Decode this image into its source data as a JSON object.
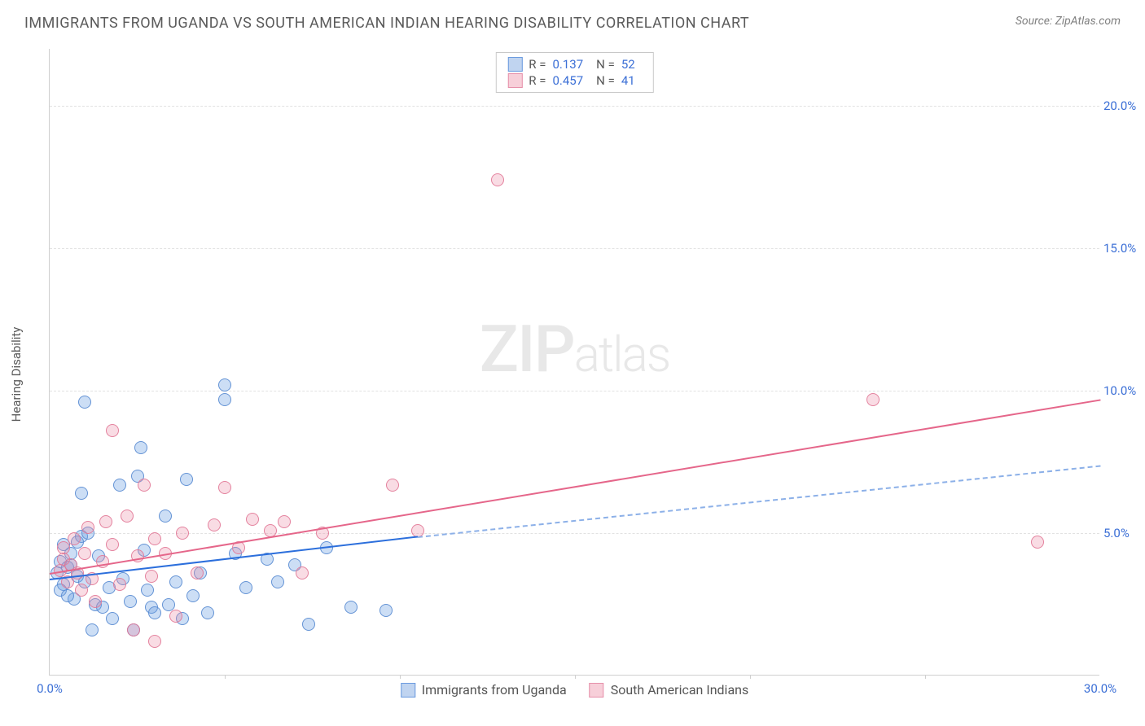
{
  "title": "IMMIGRANTS FROM UGANDA VS SOUTH AMERICAN INDIAN HEARING DISABILITY CORRELATION CHART",
  "source": "Source: ZipAtlas.com",
  "watermark_main": "ZIP",
  "watermark_sub": "atlas",
  "chart": {
    "type": "scatter",
    "ylabel": "Hearing Disability",
    "background_color": "#ffffff",
    "grid_color": "#e2e2e2",
    "axis_color": "#cfcfcf",
    "tick_color": "#3b6fd6",
    "xlim": [
      0,
      30
    ],
    "ylim": [
      0,
      22
    ],
    "xticks": [
      0,
      10,
      20,
      30
    ],
    "xtick_labels": [
      "0.0%",
      "",
      "",
      "30.0%"
    ],
    "xtick_marks": [
      5,
      10,
      15,
      20,
      25
    ],
    "yticks": [
      5,
      10,
      15,
      20
    ],
    "ytick_labels": [
      "5.0%",
      "10.0%",
      "15.0%",
      "20.0%"
    ],
    "marker_radius": 8,
    "series": [
      {
        "name": "Immigrants from Uganda",
        "key": "s1",
        "color_fill": "rgba(110,160,225,0.35)",
        "color_stroke": "#5a8cd2",
        "R": "0.137",
        "N": "52",
        "trend": {
          "x0": 0,
          "y0": 3.4,
          "x1": 10.5,
          "y1": 4.9,
          "dash_x1": 30,
          "dash_y1": 7.4
        },
        "points": [
          [
            0.2,
            3.6
          ],
          [
            0.3,
            4.0
          ],
          [
            0.4,
            3.2
          ],
          [
            0.5,
            3.8
          ],
          [
            0.3,
            3.0
          ],
          [
            0.6,
            4.3
          ],
          [
            0.4,
            4.6
          ],
          [
            0.8,
            3.5
          ],
          [
            0.7,
            2.7
          ],
          [
            0.9,
            4.9
          ],
          [
            1.0,
            3.3
          ],
          [
            0.5,
            2.8
          ],
          [
            1.1,
            5.0
          ],
          [
            0.6,
            3.9
          ],
          [
            1.3,
            2.5
          ],
          [
            1.4,
            4.2
          ],
          [
            1.5,
            2.4
          ],
          [
            0.8,
            4.7
          ],
          [
            1.7,
            3.1
          ],
          [
            1.0,
            9.6
          ],
          [
            2.0,
            6.7
          ],
          [
            1.8,
            2.0
          ],
          [
            2.1,
            3.4
          ],
          [
            2.3,
            2.6
          ],
          [
            2.5,
            7.0
          ],
          [
            2.6,
            8.0
          ],
          [
            2.8,
            3.0
          ],
          [
            2.9,
            2.4
          ],
          [
            2.7,
            4.4
          ],
          [
            3.0,
            2.2
          ],
          [
            3.3,
            5.6
          ],
          [
            3.4,
            2.5
          ],
          [
            3.6,
            3.3
          ],
          [
            3.8,
            2.0
          ],
          [
            3.9,
            6.9
          ],
          [
            4.1,
            2.8
          ],
          [
            4.3,
            3.6
          ],
          [
            4.5,
            2.2
          ],
          [
            5.0,
            10.2
          ],
          [
            5.0,
            9.7
          ],
          [
            5.3,
            4.3
          ],
          [
            5.6,
            3.1
          ],
          [
            6.2,
            4.1
          ],
          [
            6.5,
            3.3
          ],
          [
            7.0,
            3.9
          ],
          [
            7.4,
            1.8
          ],
          [
            7.9,
            4.5
          ],
          [
            8.6,
            2.4
          ],
          [
            9.6,
            2.3
          ],
          [
            1.2,
            1.6
          ],
          [
            2.4,
            1.6
          ],
          [
            0.9,
            6.4
          ]
        ]
      },
      {
        "name": "South American Indians",
        "key": "s2",
        "color_fill": "rgba(235,140,165,0.3)",
        "color_stroke": "#e17896",
        "R": "0.457",
        "N": "41",
        "trend": {
          "x0": 0,
          "y0": 3.6,
          "x1": 30,
          "y1": 9.7
        },
        "points": [
          [
            0.3,
            3.7
          ],
          [
            0.4,
            4.1
          ],
          [
            0.5,
            3.3
          ],
          [
            0.6,
            3.9
          ],
          [
            0.4,
            4.5
          ],
          [
            0.8,
            3.6
          ],
          [
            0.7,
            4.8
          ],
          [
            0.9,
            3.0
          ],
          [
            1.0,
            4.3
          ],
          [
            1.1,
            5.2
          ],
          [
            1.2,
            3.4
          ],
          [
            1.3,
            2.6
          ],
          [
            1.5,
            4.0
          ],
          [
            1.6,
            5.4
          ],
          [
            1.8,
            8.6
          ],
          [
            1.8,
            4.6
          ],
          [
            2.0,
            3.2
          ],
          [
            2.2,
            5.6
          ],
          [
            2.5,
            4.2
          ],
          [
            2.7,
            6.7
          ],
          [
            2.9,
            3.5
          ],
          [
            3.0,
            4.8
          ],
          [
            3.3,
            4.3
          ],
          [
            3.6,
            2.1
          ],
          [
            3.8,
            5.0
          ],
          [
            4.2,
            3.6
          ],
          [
            4.7,
            5.3
          ],
          [
            5.0,
            6.6
          ],
          [
            5.4,
            4.5
          ],
          [
            5.8,
            5.5
          ],
          [
            6.3,
            5.1
          ],
          [
            6.7,
            5.4
          ],
          [
            7.2,
            3.6
          ],
          [
            7.8,
            5.0
          ],
          [
            9.8,
            6.7
          ],
          [
            10.5,
            5.1
          ],
          [
            12.8,
            17.4
          ],
          [
            23.5,
            9.7
          ],
          [
            28.2,
            4.7
          ],
          [
            2.4,
            1.6
          ],
          [
            3.0,
            1.2
          ]
        ]
      }
    ],
    "legend_top": {
      "R_label": "R =",
      "N_label": "N ="
    },
    "legend_bottom": [
      {
        "swatch": "blue",
        "label": "Immigrants from Uganda"
      },
      {
        "swatch": "pink",
        "label": "South American Indians"
      }
    ]
  }
}
